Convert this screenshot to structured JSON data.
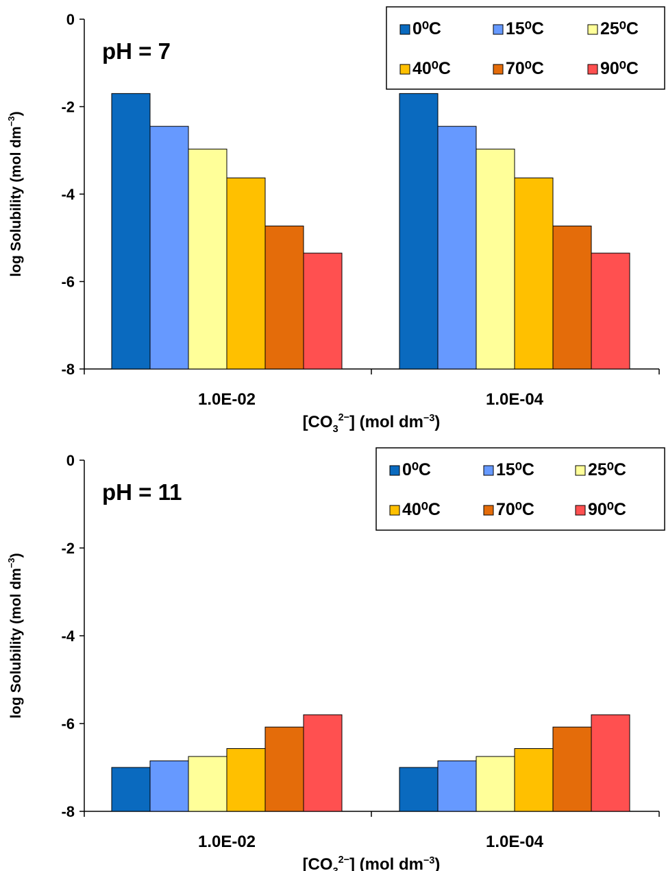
{
  "colors": {
    "0C": "#0a6abf",
    "15C": "#6699ff",
    "25C": "#ffff99",
    "40C": "#ffc000",
    "70C": "#e46c0a",
    "90C": "#ff5050"
  },
  "chart_data": [
    {
      "type": "bar",
      "annotation": "pH = 7",
      "xlabel": "[CO₃²⁻] (mol dm⁻³)",
      "ylabel": "log Solubility (mol dm⁻³)",
      "ylim": [
        -8,
        0
      ],
      "yticks": [
        "0",
        "-2",
        "-4",
        "-6",
        "-8"
      ],
      "categories": [
        "1.0E-02",
        "1.0E-04"
      ],
      "legend": "top-right",
      "grid": false,
      "series": [
        {
          "name": "0⁰C",
          "color": "#0a6abf",
          "values": [
            -1.7,
            -1.7
          ]
        },
        {
          "name": "15⁰C",
          "color": "#6699ff",
          "values": [
            -2.45,
            -2.45
          ]
        },
        {
          "name": "25⁰C",
          "color": "#ffff99",
          "values": [
            -2.97,
            -2.97
          ]
        },
        {
          "name": "40⁰C",
          "color": "#ffc000",
          "values": [
            -3.63,
            -3.63
          ]
        },
        {
          "name": "70⁰C",
          "color": "#e46c0a",
          "values": [
            -4.73,
            -4.73
          ]
        },
        {
          "name": "90⁰C",
          "color": "#ff5050",
          "values": [
            -5.35,
            -5.35
          ]
        }
      ]
    },
    {
      "type": "bar",
      "annotation": "pH = 11",
      "xlabel": "[CO₃²⁻] (mol dm⁻³)",
      "ylabel": "log Solubility (mol dm⁻³)",
      "ylim": [
        -8,
        0
      ],
      "yticks": [
        "0",
        "-2",
        "-4",
        "-6",
        "-8"
      ],
      "categories": [
        "1.0E-02",
        "1.0E-04"
      ],
      "legend": "top-right",
      "grid": false,
      "series": [
        {
          "name": "0⁰C",
          "color": "#0a6abf",
          "values": [
            -7.0,
            -7.0
          ]
        },
        {
          "name": "15⁰C",
          "color": "#6699ff",
          "values": [
            -6.85,
            -6.85
          ]
        },
        {
          "name": "25⁰C",
          "color": "#ffff99",
          "values": [
            -6.75,
            -6.75
          ]
        },
        {
          "name": "40⁰C",
          "color": "#ffc000",
          "values": [
            -6.57,
            -6.57
          ]
        },
        {
          "name": "70⁰C",
          "color": "#e46c0a",
          "values": [
            -6.08,
            -6.08
          ]
        },
        {
          "name": "90⁰C",
          "color": "#ff5050",
          "values": [
            -5.8,
            -5.8
          ]
        }
      ]
    }
  ]
}
